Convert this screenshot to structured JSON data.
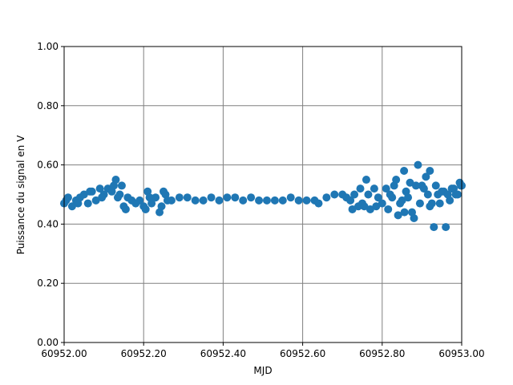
{
  "chart_data": {
    "type": "scatter",
    "xlabel": "MJD",
    "ylabel": "Puissance du signal en V",
    "xlim": [
      60952,
      60953
    ],
    "ylim": [
      0,
      1
    ],
    "xticks": [
      {
        "value": 60952,
        "label": "60952.00"
      },
      {
        "value": 60952.2,
        "label": "60952.20"
      },
      {
        "value": 60952.4,
        "label": "60952.40"
      },
      {
        "value": 60952.6,
        "label": "60952.60"
      },
      {
        "value": 60952.8,
        "label": "60952.80"
      },
      {
        "value": 60953,
        "label": "60953.00"
      }
    ],
    "yticks": [
      {
        "value": 0,
        "label": "0.00"
      },
      {
        "value": 0.2,
        "label": "0.20"
      },
      {
        "value": 0.4,
        "label": "0.40"
      },
      {
        "value": 0.6,
        "label": "0.60"
      },
      {
        "value": 0.8,
        "label": "0.80"
      },
      {
        "value": 1,
        "label": "1.00"
      }
    ],
    "grid": true,
    "color": "#1f77b4",
    "x": [
      60952.0,
      60952.01,
      60952.02,
      60952.03,
      60952.04,
      60952.05,
      60952.06,
      60952.07,
      60952.08,
      60952.09,
      60952.1,
      60952.11,
      60952.12,
      60952.13,
      60952.14,
      60952.15,
      60952.005,
      60952.035,
      60952.065,
      60952.095,
      60952.125,
      60952.135,
      60952.145,
      60952.155,
      60952.16,
      60952.17,
      60952.18,
      60952.19,
      60952.2,
      60952.21,
      60952.22,
      60952.23,
      60952.24,
      60952.25,
      60952.26,
      60952.205,
      60952.245,
      60952.255,
      60952.215,
      60952.27,
      60952.29,
      60952.31,
      60952.33,
      60952.35,
      60952.37,
      60952.39,
      60952.41,
      60952.43,
      60952.45,
      60952.47,
      60952.49,
      60952.51,
      60952.53,
      60952.55,
      60952.57,
      60952.59,
      60952.61,
      60952.63,
      60952.64,
      60952.66,
      60952.68,
      60952.7,
      60952.71,
      60952.72,
      60952.73,
      60952.74,
      60952.75,
      60952.76,
      60952.77,
      60952.78,
      60952.79,
      60952.8,
      60952.725,
      60952.745,
      60952.755,
      60952.765,
      60952.785,
      60952.81,
      60952.82,
      60952.83,
      60952.84,
      60952.85,
      60952.86,
      60952.87,
      60952.88,
      60952.89,
      60952.9,
      60952.91,
      60952.92,
      60952.93,
      60952.94,
      60952.95,
      60952.96,
      60952.97,
      60952.98,
      60952.99,
      60953.0,
      60952.815,
      60952.825,
      60952.835,
      60952.845,
      60952.855,
      60952.856,
      60952.865,
      60952.875,
      60952.885,
      60952.895,
      60952.905,
      60952.915,
      60952.92,
      60952.925,
      60952.935,
      60952.945,
      60952.955,
      60952.965,
      60952.975,
      60952.985,
      60952.995,
      60952.998
    ],
    "values": [
      0.47,
      0.49,
      0.46,
      0.48,
      0.49,
      0.5,
      0.47,
      0.51,
      0.48,
      0.52,
      0.5,
      0.52,
      0.51,
      0.55,
      0.5,
      0.46,
      0.48,
      0.47,
      0.51,
      0.49,
      0.53,
      0.49,
      0.53,
      0.45,
      0.49,
      0.48,
      0.47,
      0.48,
      0.46,
      0.51,
      0.47,
      0.49,
      0.44,
      0.51,
      0.48,
      0.45,
      0.46,
      0.5,
      0.49,
      0.48,
      0.49,
      0.49,
      0.48,
      0.48,
      0.49,
      0.48,
      0.49,
      0.49,
      0.48,
      0.49,
      0.48,
      0.48,
      0.48,
      0.48,
      0.49,
      0.48,
      0.48,
      0.48,
      0.47,
      0.49,
      0.5,
      0.5,
      0.49,
      0.48,
      0.5,
      0.46,
      0.47,
      0.55,
      0.45,
      0.52,
      0.49,
      0.47,
      0.45,
      0.52,
      0.46,
      0.5,
      0.46,
      0.52,
      0.5,
      0.53,
      0.43,
      0.48,
      0.51,
      0.54,
      0.42,
      0.6,
      0.53,
      0.56,
      0.46,
      0.39,
      0.5,
      0.51,
      0.39,
      0.48,
      0.52,
      0.5,
      0.53,
      0.45,
      0.49,
      0.55,
      0.47,
      0.58,
      0.44,
      0.49,
      0.44,
      0.53,
      0.47,
      0.52,
      0.5,
      0.58,
      0.47,
      0.53,
      0.47,
      0.51,
      0.5,
      0.52,
      0.5,
      0.54,
      0.53
    ]
  }
}
